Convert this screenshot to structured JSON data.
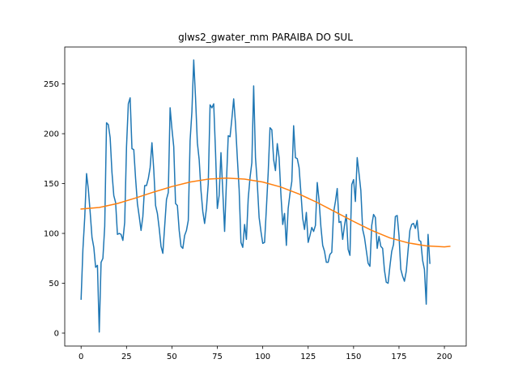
{
  "chart_data": {
    "type": "line",
    "title": "glws2_gwater_mm PARAIBA DO SUL",
    "xlabel": "",
    "ylabel": "",
    "xlim": [
      -9,
      212
    ],
    "ylim": [
      -13,
      287
    ],
    "xticks": [
      0,
      25,
      50,
      75,
      100,
      125,
      150,
      175,
      200
    ],
    "yticks": [
      0,
      50,
      100,
      150,
      200,
      250
    ],
    "grid": false,
    "legend": "none",
    "series": [
      {
        "color": "#1f77b4",
        "y": [
          34,
          84,
          116,
          160,
          144,
          121,
          96,
          86,
          66,
          68,
          1,
          71,
          75,
          107,
          211,
          209,
          196,
          161,
          138,
          131,
          99,
          100,
          99,
          93,
          111,
          187,
          230,
          236,
          185,
          184,
          155,
          130,
          117,
          103,
          117,
          148,
          148,
          155,
          166,
          191,
          164,
          128,
          120,
          105,
          87,
          80,
          107,
          134,
          141,
          226,
          205,
          187,
          130,
          128,
          103,
          87,
          85,
          98,
          103,
          113,
          193,
          222,
          274,
          236,
          191,
          174,
          143,
          122,
          110,
          125,
          150,
          229,
          226,
          230,
          182,
          125,
          138,
          181,
          142,
          102,
          151,
          198,
          197,
          215,
          235,
          210,
          176,
          144,
          91,
          86,
          109,
          94,
          135,
          156,
          171,
          248,
          176,
          150,
          116,
          102,
          90,
          91,
          125,
          161,
          206,
          204,
          174,
          163,
          190,
          176,
          139,
          109,
          120,
          88,
          125,
          140,
          152,
          208,
          176,
          175,
          166,
          141,
          115,
          104,
          121,
          91,
          98,
          106,
          102,
          108,
          151,
          133,
          107,
          88,
          82,
          71,
          71,
          79,
          81,
          121,
          132,
          145,
          111,
          112,
          94,
          108,
          119,
          84,
          78,
          149,
          154,
          132,
          176,
          160,
          143,
          104,
          96,
          83,
          70,
          67,
          108,
          119,
          116,
          85,
          97,
          87,
          85,
          63,
          51,
          50,
          67,
          82,
          89,
          117,
          118,
          98,
          64,
          57,
          52,
          62,
          83,
          103,
          109,
          110,
          105,
          113,
          93,
          92,
          73,
          64,
          29,
          99,
          70
        ]
      },
      {
        "color": "#ff7f0e",
        "fit": {
          "x": [
            0,
            10,
            20,
            30,
            40,
            50,
            60,
            70,
            80,
            90,
            100,
            110,
            120,
            130,
            140,
            150,
            160,
            170,
            180,
            190,
            200,
            203
          ],
          "y": [
            124.5,
            126,
            130,
            135.5,
            141.5,
            147,
            151.5,
            154.5,
            155.5,
            154.5,
            151.5,
            146.5,
            139.5,
            131,
            121.5,
            112,
            103,
            95.5,
            90.5,
            87.5,
            86.5,
            87
          ]
        }
      }
    ]
  }
}
